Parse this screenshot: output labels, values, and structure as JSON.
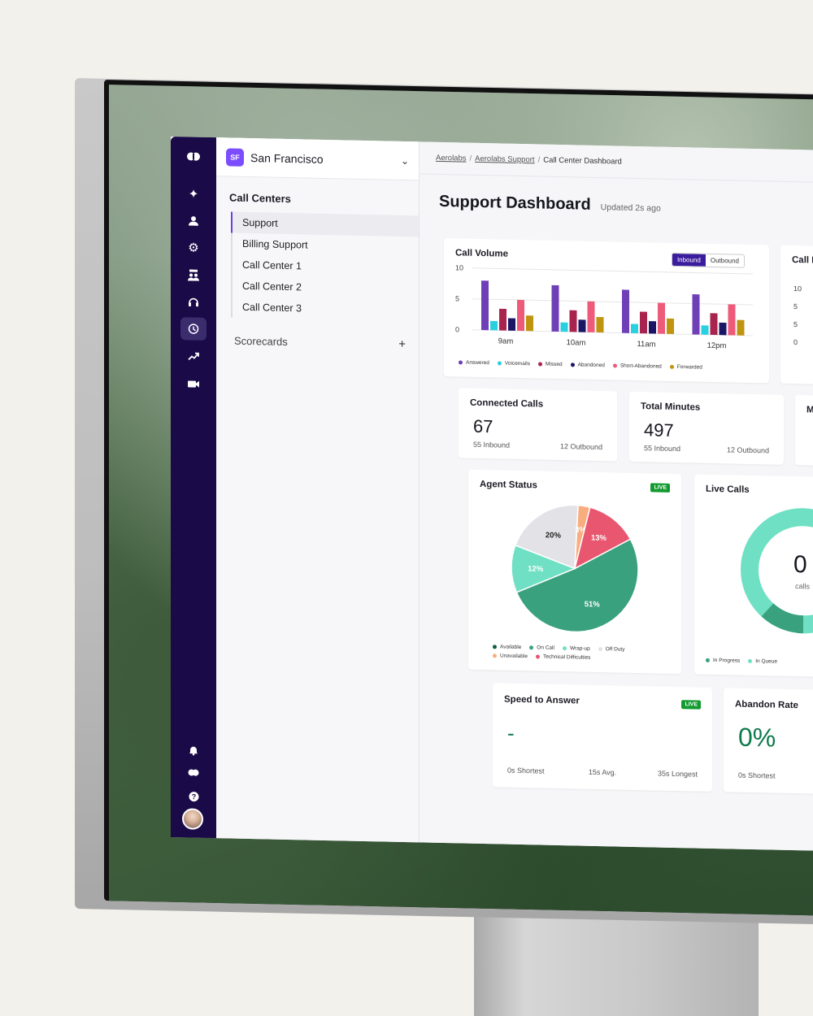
{
  "sidebar": {
    "location_badge": "SF",
    "location_name": "San Francisco",
    "section_title": "Call Centers",
    "items": [
      "Support",
      "Billing Support",
      "Call Center 1",
      "Call Center 2",
      "Call Center 3"
    ],
    "scorecards_label": "Scorecards",
    "add_symbol": "+"
  },
  "breadcrumb": {
    "items": [
      "Aerolabs",
      "Aerolabs Support",
      "Call Center Dashboard"
    ],
    "separator": "/"
  },
  "page": {
    "title": "Support Dashboard",
    "updated": "Updated 2s ago"
  },
  "call_volume": {
    "title": "Call Volume",
    "toggle": [
      "Inbound",
      "Outbound"
    ]
  },
  "call_second_card": {
    "title": "Call D",
    "ticks": [
      "10",
      "5",
      "5",
      "0"
    ]
  },
  "stats": {
    "connected": {
      "title": "Connected Calls",
      "value": "67",
      "inbound": "55 Inbound",
      "outbound": "12 Outbound"
    },
    "minutes": {
      "title": "Total Minutes",
      "value": "497",
      "inbound": "55 Inbound",
      "outbound": "12 Outbound"
    },
    "third_title": "M"
  },
  "agent_status": {
    "title": "Agent Status",
    "live": "LIVE"
  },
  "live_calls": {
    "title": "Live Calls",
    "value": "0",
    "unit": "calls",
    "legend": [
      {
        "label": "In Progress",
        "color": "#3aa17e"
      },
      {
        "label": "In Queue",
        "color": "#6fe0c4"
      }
    ]
  },
  "speed_to_answer": {
    "title": "Speed to Answer",
    "live": "LIVE",
    "value": "-",
    "shortest": "0s Shortest",
    "avg": "15s Avg.",
    "longest": "35s Longest"
  },
  "abandon_rate": {
    "title": "Abandon Rate",
    "value": "0%",
    "shortest": "0s Shortest"
  },
  "chart_data": [
    {
      "type": "bar",
      "title": "Call Volume",
      "categories": [
        "9am",
        "10am",
        "11am",
        "12pm"
      ],
      "yticks": [
        "10",
        "5",
        "0"
      ],
      "ylim": [
        0,
        10
      ],
      "grid": true,
      "legend_position": "bottom",
      "series": [
        {
          "name": "Answered",
          "color": "#6f3fb8",
          "values": [
            8,
            7.5,
            7,
            6.5
          ]
        },
        {
          "name": "Voicemails",
          "color": "#2ad0df",
          "values": [
            1.5,
            1.5,
            1.5,
            1.5
          ]
        },
        {
          "name": "Missed",
          "color": "#a8234e",
          "values": [
            3.5,
            3.5,
            3.5,
            3.5
          ]
        },
        {
          "name": "Abandoned",
          "color": "#1a1565",
          "values": [
            2,
            2,
            2,
            2
          ]
        },
        {
          "name": "Short-Abandoned",
          "color": "#ee5a7a",
          "values": [
            5,
            5,
            5,
            5
          ]
        },
        {
          "name": "Forwarded",
          "color": "#bf9410",
          "values": [
            2.5,
            2.5,
            2.5,
            2.5
          ]
        }
      ]
    },
    {
      "type": "pie",
      "title": "Agent Status",
      "legend_position": "bottom",
      "slices": [
        {
          "name": "On Call",
          "value": 51,
          "label": "51%",
          "color": "#3aa17e"
        },
        {
          "name": "Wrap-up",
          "value": 12,
          "label": "12%",
          "color": "#6fe0c4"
        },
        {
          "name": "Off Duty",
          "value": 20,
          "label": "20%",
          "color": "#e3e3e7"
        },
        {
          "name": "Unavailable",
          "value": 3,
          "label": "3%",
          "color": "#f8ad7f"
        },
        {
          "name": "Technical Difficulties",
          "value": 13,
          "label": "13%",
          "color": "#e9566f"
        }
      ],
      "legend": [
        {
          "label": "Available",
          "color": "#0b6142"
        },
        {
          "label": "On Call",
          "color": "#3aa17e"
        },
        {
          "label": "Wrap-up",
          "color": "#6fe0c4"
        },
        {
          "label": "Off Duty",
          "color": "#e3e3e7"
        },
        {
          "label": "Unavailable",
          "color": "#f8ad7f"
        },
        {
          "label": "Technical Difficulties",
          "color": "#e9566f"
        }
      ]
    }
  ]
}
